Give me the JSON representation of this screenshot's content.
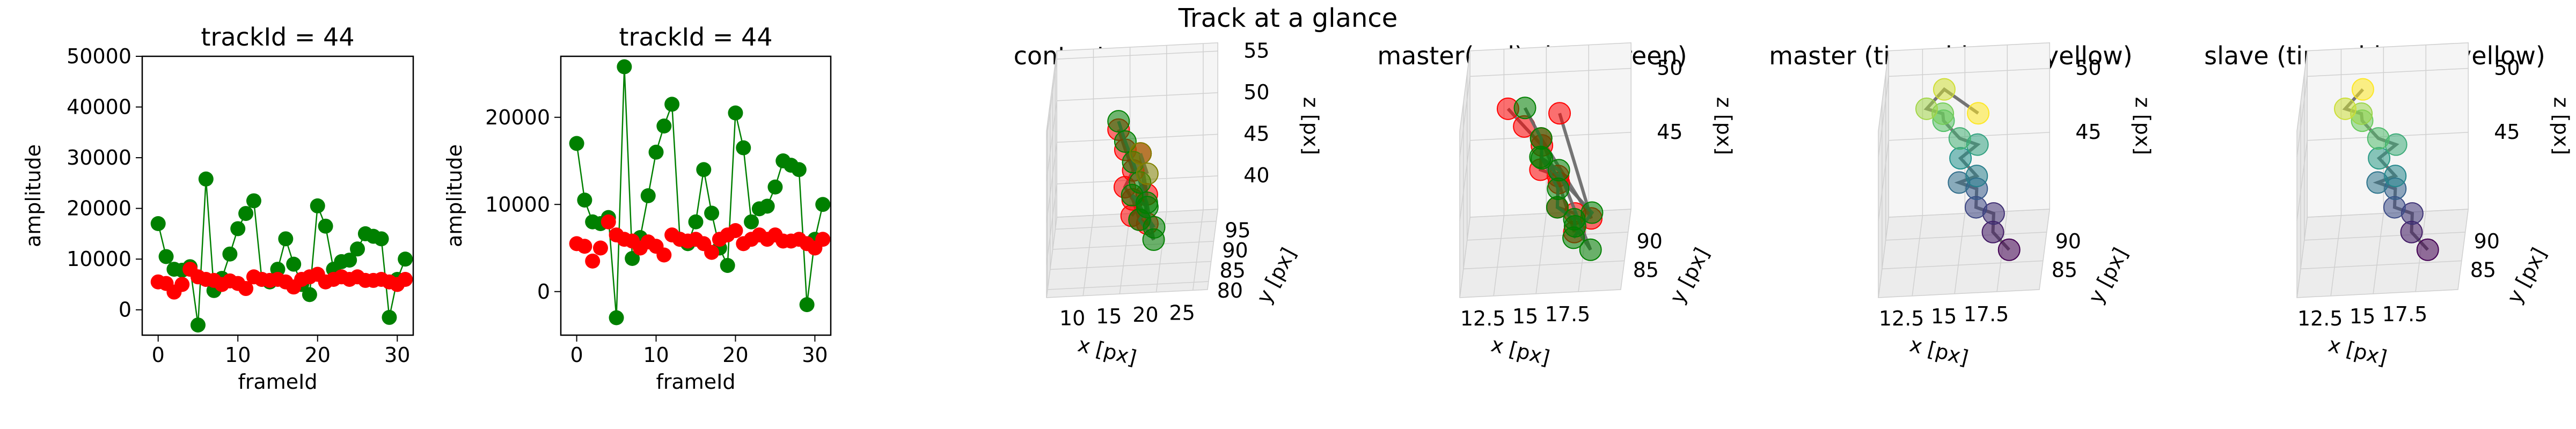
{
  "suptitle": "Track at a glance",
  "chart_data": [
    {
      "type": "scatter",
      "title": "trackId = 44",
      "xlabel": "frameId",
      "ylabel": "amplitude",
      "xlim": [
        -2,
        32
      ],
      "ylim": [
        -5000,
        50000
      ],
      "xticks": [
        0,
        10,
        20,
        30
      ],
      "yticks": [
        0,
        10000,
        20000,
        30000,
        40000,
        50000
      ],
      "grid": false,
      "series": [
        {
          "color": "#008000",
          "style": "line+markers",
          "x": [
            0,
            1,
            2,
            3,
            4,
            5,
            6,
            7,
            8,
            9,
            10,
            11,
            12,
            13,
            14,
            15,
            16,
            17,
            18,
            19,
            20,
            21,
            22,
            23,
            24,
            25,
            26,
            27,
            28,
            29,
            30,
            31
          ],
          "y": [
            17000,
            10500,
            8000,
            7800,
            8500,
            -3000,
            25800,
            3800,
            6200,
            11000,
            16000,
            19000,
            21500,
            6000,
            5500,
            8000,
            14000,
            9000,
            5000,
            3000,
            20500,
            16500,
            8000,
            9500,
            9800,
            12000,
            15000,
            14500,
            14000,
            -1500,
            6000,
            10000
          ]
        },
        {
          "color": "#ff0000",
          "style": "markers",
          "x": [
            0,
            1,
            2,
            3,
            4,
            5,
            6,
            7,
            8,
            9,
            10,
            11,
            12,
            13,
            14,
            15,
            16,
            17,
            18,
            19,
            20,
            21,
            22,
            23,
            24,
            25,
            26,
            27,
            28,
            29,
            30,
            31
          ],
          "y": [
            5500,
            5200,
            3500,
            5000,
            8000,
            6500,
            6000,
            5800,
            5000,
            5700,
            5200,
            4200,
            6500,
            6000,
            5800,
            6000,
            5500,
            4500,
            6000,
            6500,
            7000,
            5500,
            6000,
            6500,
            6000,
            6500,
            5800,
            5800,
            6000,
            5500,
            5000,
            6000
          ]
        }
      ]
    },
    {
      "type": "scatter",
      "title": "trackId = 44",
      "xlabel": "frameId",
      "ylabel": "amplitude",
      "xlim": [
        -2,
        32
      ],
      "ylim": [
        -5000,
        27000
      ],
      "xticks": [
        0,
        10,
        20,
        30
      ],
      "yticks": [
        0,
        10000,
        20000
      ],
      "grid": false,
      "series": [
        {
          "color": "#008000",
          "style": "line+markers",
          "x": [
            0,
            1,
            2,
            3,
            4,
            5,
            6,
            7,
            8,
            9,
            10,
            11,
            12,
            13,
            14,
            15,
            16,
            17,
            18,
            19,
            20,
            21,
            22,
            23,
            24,
            25,
            26,
            27,
            28,
            29,
            30,
            31
          ],
          "y": [
            17000,
            10500,
            8000,
            7800,
            8500,
            -3000,
            25800,
            3800,
            6200,
            11000,
            16000,
            19000,
            21500,
            6000,
            5500,
            8000,
            14000,
            9000,
            5000,
            3000,
            20500,
            16500,
            8000,
            9500,
            9800,
            12000,
            15000,
            14500,
            14000,
            -1500,
            6000,
            10000
          ]
        },
        {
          "color": "#ff0000",
          "style": "markers",
          "x": [
            0,
            1,
            2,
            3,
            4,
            5,
            6,
            7,
            8,
            9,
            10,
            11,
            12,
            13,
            14,
            15,
            16,
            17,
            18,
            19,
            20,
            21,
            22,
            23,
            24,
            25,
            26,
            27,
            28,
            29,
            30,
            31
          ],
          "y": [
            5500,
            5200,
            3500,
            5000,
            8000,
            6500,
            6000,
            5800,
            5000,
            5700,
            5200,
            4200,
            6500,
            6000,
            5800,
            6000,
            5500,
            4500,
            6000,
            6500,
            7000,
            5500,
            6000,
            6500,
            6000,
            6500,
            5800,
            5800,
            6000,
            5500,
            5000,
            6000
          ]
        }
      ]
    },
    {
      "type": "scatter3d",
      "title": "context +- 10px",
      "xlabel": "x [px]",
      "ylabel": "y [px]",
      "zlabel": "z [px]",
      "xlim": [
        5,
        27
      ],
      "ylim": [
        78,
        98
      ],
      "zlim": [
        36,
        56
      ],
      "xticks": [
        10,
        15,
        20,
        25
      ],
      "yticks": [
        80,
        85,
        90,
        95
      ],
      "zticks": [
        40,
        45,
        50,
        55
      ],
      "grid": true,
      "series": [
        {
          "color": "#ff0000",
          "points": [
            [
              14,
              90,
              50
            ],
            [
              15,
              89,
              48
            ],
            [
              16,
              90,
              45
            ],
            [
              15,
              88,
              44
            ],
            [
              16,
              89,
              42
            ],
            [
              17,
              88,
              40
            ],
            [
              18,
              89,
              39
            ],
            [
              17,
              90,
              47
            ],
            [
              18,
              88,
              43
            ],
            [
              16,
              87,
              41
            ]
          ]
        },
        {
          "color": "#008000",
          "points": [
            [
              14,
              90,
              51
            ],
            [
              15,
              89,
              49
            ],
            [
              16,
              90,
              46
            ],
            [
              17,
              89,
              44
            ],
            [
              18,
              88,
              42
            ],
            [
              19,
              87,
              38
            ],
            [
              17,
              88,
              40
            ],
            [
              18,
              89,
              41
            ],
            [
              16,
              88,
              43
            ],
            [
              19,
              88,
              39
            ]
          ]
        },
        {
          "color": "#808000",
          "points": [
            [
              17,
              90,
              47
            ],
            [
              18,
              89,
              45
            ]
          ]
        }
      ]
    },
    {
      "type": "scatter3d",
      "title": "master(red) slave(green)",
      "xlabel": "x [px]",
      "ylabel": "y [px]",
      "zlabel": "z [px]",
      "xlim": [
        10.5,
        20
      ],
      "ylim": [
        80,
        94
      ],
      "zlim": [
        39,
        52
      ],
      "xticks": [
        12.5,
        15.0,
        17.5
      ],
      "yticks": [
        85,
        90
      ],
      "zticks": [
        45,
        50
      ],
      "grid": true,
      "series": [
        {
          "color": "#ff0000",
          "points": [
            [
              13,
              88,
              50
            ],
            [
              14,
              87,
              49
            ],
            [
              15,
              88,
              47
            ],
            [
              15,
              86,
              46
            ],
            [
              16,
              87,
              45
            ],
            [
              16,
              86,
              43
            ],
            [
              17,
              87,
              42
            ],
            [
              17,
              86,
              41
            ],
            [
              16,
              88,
              44
            ],
            [
              15,
              87,
              48
            ],
            [
              18,
              86,
              42
            ],
            [
              16,
              89,
              49
            ]
          ]
        },
        {
          "color": "#008000",
          "points": [
            [
              14,
              88,
              50
            ],
            [
              15,
              87,
              48
            ],
            [
              15,
              88,
              46
            ],
            [
              16,
              87,
              44
            ],
            [
              16,
              86,
              43
            ],
            [
              17,
              86,
              42
            ],
            [
              17,
              87,
              41
            ],
            [
              18,
              85,
              40
            ],
            [
              16,
              88,
              45
            ],
            [
              15,
              86,
              47
            ],
            [
              18,
              87,
              42
            ],
            [
              17,
              85,
              41
            ]
          ]
        }
      ]
    },
    {
      "type": "scatter3d",
      "title": "master (time: blue -> yellow)",
      "xlabel": "x [px]",
      "ylabel": "y [px]",
      "zlabel": "z [px]",
      "xlim": [
        10.5,
        20
      ],
      "ylim": [
        80,
        94
      ],
      "zlim": [
        39,
        52
      ],
      "xticks": [
        12.5,
        15.0,
        17.5
      ],
      "yticks": [
        85,
        90
      ],
      "zticks": [
        45,
        50
      ],
      "grid": true,
      "colormap": [
        "#440154",
        "#3b528b",
        "#21918c",
        "#5ec962",
        "#fde725"
      ],
      "series": [
        {
          "colormap_by": "time",
          "points": [
            [
              18,
              85,
              40
            ],
            [
              17,
              86,
              41
            ],
            [
              17,
              87,
              42
            ],
            [
              16,
              86,
              43
            ],
            [
              16,
              87,
              44
            ],
            [
              15,
              86,
              45
            ],
            [
              16,
              87,
              45
            ],
            [
              15,
              88,
              46
            ],
            [
              16,
              88,
              47
            ],
            [
              15,
              87,
              48
            ],
            [
              14,
              88,
              49
            ],
            [
              14,
              87,
              50
            ],
            [
              13,
              88,
              50
            ],
            [
              14,
              89,
              51
            ],
            [
              16,
              89,
              49
            ]
          ]
        }
      ]
    },
    {
      "type": "scatter3d",
      "title": "slave (time: blue -> yellow)",
      "xlabel": "x [px]",
      "ylabel": "y [px]",
      "zlabel": "z [px]",
      "xlim": [
        10.5,
        20
      ],
      "ylim": [
        80,
        94
      ],
      "zlim": [
        39,
        52
      ],
      "xticks": [
        12.5,
        15.0,
        17.5
      ],
      "yticks": [
        85,
        90
      ],
      "zticks": [
        45,
        50
      ],
      "grid": true,
      "colormap": [
        "#440154",
        "#3b528b",
        "#21918c",
        "#5ec962",
        "#fde725"
      ],
      "series": [
        {
          "colormap_by": "time",
          "points": [
            [
              18,
              85,
              40
            ],
            [
              17,
              86,
              41
            ],
            [
              17,
              87,
              42
            ],
            [
              16,
              86,
              43
            ],
            [
              16,
              87,
              44
            ],
            [
              15,
              86,
              45
            ],
            [
              16,
              87,
              45
            ],
            [
              15,
              88,
              46
            ],
            [
              16,
              88,
              47
            ],
            [
              15,
              87,
              48
            ],
            [
              14,
              88,
              49
            ],
            [
              14,
              87,
              50
            ],
            [
              13,
              88,
              50
            ],
            [
              14,
              89,
              51
            ]
          ]
        }
      ]
    }
  ]
}
